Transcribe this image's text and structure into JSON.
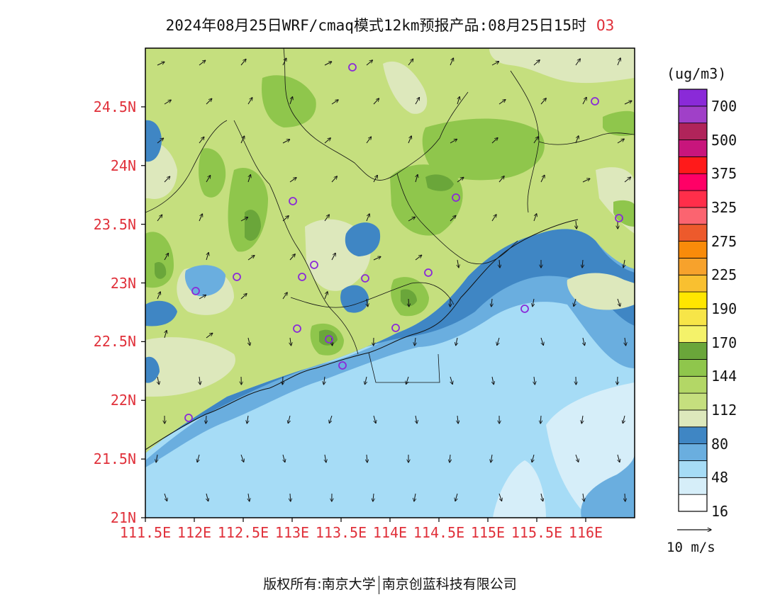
{
  "title": {
    "text": "2024年08月25日WRF/cmaq模式12km预报产品:08月25日15时",
    "species": "O3"
  },
  "axes": {
    "y_labels": [
      "24.5N",
      "24N",
      "23.5N",
      "23N",
      "22.5N",
      "22N",
      "21.5N",
      "21N"
    ],
    "y_values": [
      24.5,
      24,
      23.5,
      23,
      22.5,
      22,
      21.5,
      21
    ],
    "x_labels": [
      "111.5E",
      "112E",
      "112.5E",
      "113E",
      "113.5E",
      "114E",
      "114.5E",
      "115E",
      "115.5E",
      "116E"
    ],
    "x_values": [
      111.5,
      112,
      112.5,
      113,
      113.5,
      114,
      114.5,
      115,
      115.5,
      116
    ],
    "lon_range": [
      111.5,
      116.5
    ],
    "lat_range": [
      21,
      25
    ]
  },
  "colorbar": {
    "units": "(ug/m3)",
    "labels": [
      "700",
      "500",
      "375",
      "325",
      "275",
      "225",
      "190",
      "170",
      "144",
      "112",
      "80",
      "48",
      "16"
    ],
    "colors": [
      "#ffffff",
      "#d6eef9",
      "#a6dcf6",
      "#6aaedf",
      "#3f86c4",
      "#dde8bc",
      "#c5df7e",
      "#b3d766",
      "#8fc64c",
      "#6aa63a",
      "#f4f26a",
      "#f7e548",
      "#ffe600",
      "#f9c030",
      "#f7a22c",
      "#f98b0a",
      "#ed5a2c",
      "#fb6470",
      "#ff2e4a",
      "#ff0066",
      "#ff1a1a",
      "#c8157c",
      "#b0245a",
      "#a040c8",
      "#8a2ad8"
    ]
  },
  "wind_reference": "10 m/s",
  "map_colors": {
    "sea_light": "#a6dcf6",
    "sea_pale": "#d6eef9",
    "coastal_blue": "#6aaedf",
    "deep_blue": "#3f86c4",
    "land_pale": "#dde8bc",
    "land_green": "#c5df7e",
    "land_mid": "#8fc64c",
    "land_dark": "#6aa63a",
    "station_marker": "#8a2ad8"
  },
  "footer": {
    "left": "版权所有:南京大学",
    "right": "南京创蓝科技有限公司"
  }
}
